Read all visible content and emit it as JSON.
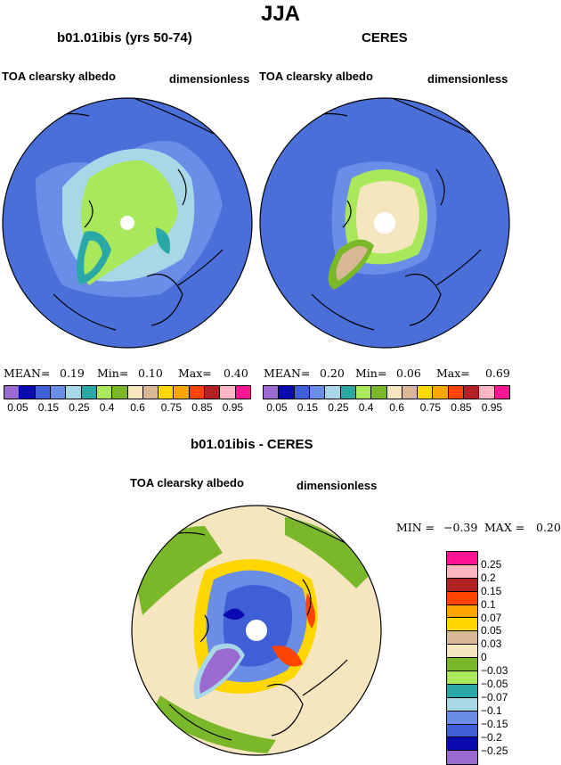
{
  "title": "JJA",
  "panels": [
    {
      "title": "b01.01ibis (yrs 50-74)",
      "variable": "TOA clearsky albedo",
      "units": "dimensionless",
      "stats": {
        "mean_label": "MEAN=",
        "mean": "0.19",
        "min_label": "Min=",
        "min": "0.10",
        "max_label": "Max=",
        "max": "0.40"
      }
    },
    {
      "title": "CERES",
      "variable": "TOA clearsky albedo",
      "units": "dimensionless",
      "stats": {
        "mean_label": "MEAN=",
        "mean": "0.20",
        "min_label": "Min=",
        "min": "0.06",
        "max_label": "Max=",
        "max": "0.69"
      }
    }
  ],
  "top_colorbar": {
    "colors": [
      "#9b6ad1",
      "#0a0ab0",
      "#3f5fd6",
      "#6a8ee8",
      "#a8d8e8",
      "#2aa8a8",
      "#a8e85a",
      "#7ab82a",
      "#f5e6c0",
      "#d9b895",
      "#ffd700",
      "#ffa500",
      "#ff4500",
      "#b22222",
      "#ffb6c1",
      "#ff1493"
    ],
    "labels": [
      "0.05",
      "0.15",
      "0.25",
      "0.4",
      "0.6",
      "0.75",
      "0.85",
      "0.95"
    ]
  },
  "diff_panel": {
    "title": "b01.01ibis - CERES",
    "variable": "TOA clearsky albedo",
    "units": "dimensionless",
    "min_label": "MIN =",
    "min": "−0.39",
    "max_label": "MAX =",
    "max": "0.20"
  },
  "diff_colorbar": {
    "colors": [
      "#ff1493",
      "#ffb6c1",
      "#b22222",
      "#ff4500",
      "#ffa500",
      "#ffd700",
      "#d9b895",
      "#f5e6c0",
      "#7ab82a",
      "#a8e85a",
      "#2aa8a8",
      "#a8d8e8",
      "#6a8ee8",
      "#3f5fd6",
      "#0a0ab0",
      "#9b6ad1"
    ],
    "labels": [
      "0.25",
      "0.2",
      "0.15",
      "0.1",
      "0.07",
      "0.05",
      "0.03",
      "0",
      "−0.03",
      "−0.05",
      "−0.07",
      "−0.1",
      "−0.15",
      "−0.2",
      "−0.25"
    ]
  }
}
